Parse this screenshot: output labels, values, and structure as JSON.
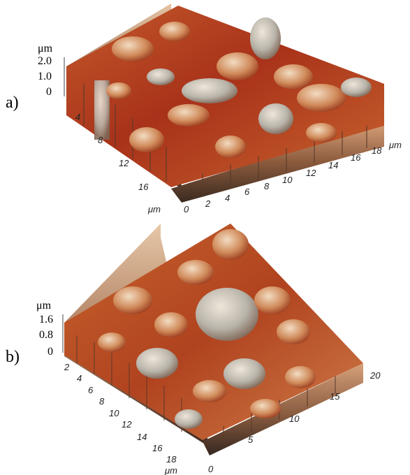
{
  "panels": [
    {
      "label": "a)",
      "z_unit": "μm",
      "z_ticks": [
        "2.0",
        "1.0",
        "0"
      ],
      "x_unit": "μm",
      "x_ticks": [
        "0",
        "2",
        "4",
        "6",
        "8",
        "10",
        "12",
        "14",
        "16",
        "18"
      ],
      "y_unit": "μm",
      "y_ticks": [
        "4",
        "8",
        "12",
        "16"
      ]
    },
    {
      "label": "b)",
      "z_unit": "μm",
      "z_ticks": [
        "1.6",
        "0.8",
        "0"
      ],
      "x_unit": "μm",
      "x_ticks": [
        "0",
        "5",
        "10",
        "15",
        "20"
      ],
      "y_ticks": [
        "2",
        "4",
        "6",
        "8",
        "10",
        "12",
        "14",
        "16",
        "18"
      ]
    }
  ],
  "colors": {
    "surface_dark": "#a8321a",
    "surface_mid": "#c8642e",
    "surface_light": "#e8c7a4",
    "surface_grey": "#b9b4aa"
  }
}
